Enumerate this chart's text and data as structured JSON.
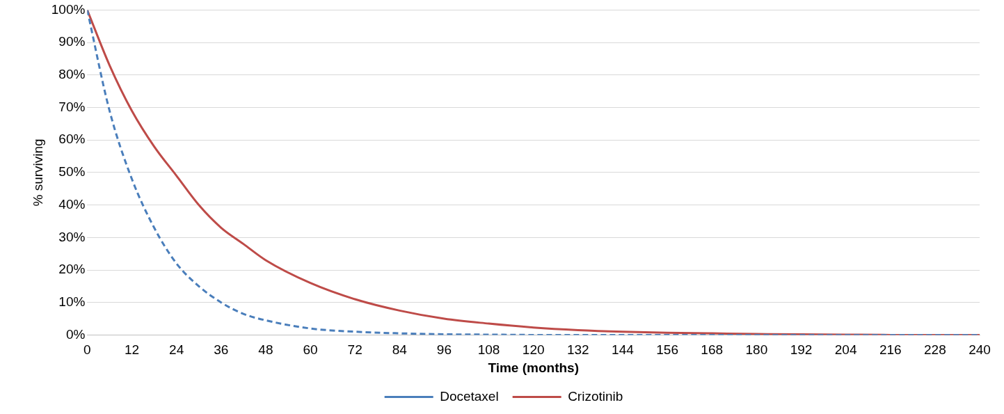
{
  "chart_data": {
    "type": "line",
    "xlabel": "Time (months)",
    "ylabel": "% surviving",
    "xlim": [
      0,
      240
    ],
    "xticks": [
      0,
      12,
      24,
      36,
      48,
      60,
      72,
      84,
      96,
      108,
      120,
      132,
      144,
      156,
      168,
      180,
      192,
      204,
      216,
      228,
      240
    ],
    "ylim": [
      0,
      100
    ],
    "yticks": [
      {
        "value": 0,
        "label": "0%"
      },
      {
        "value": 10,
        "label": "10%"
      },
      {
        "value": 20,
        "label": "20%"
      },
      {
        "value": 30,
        "label": "30%"
      },
      {
        "value": 40,
        "label": "40%"
      },
      {
        "value": 50,
        "label": "50%"
      },
      {
        "value": 60,
        "label": "60%"
      },
      {
        "value": 70,
        "label": "70%"
      },
      {
        "value": 80,
        "label": "80%"
      },
      {
        "value": 90,
        "label": "90%"
      },
      {
        "value": 100,
        "label": "100%"
      }
    ],
    "grid": "y",
    "legend": "bottom",
    "marker": "none",
    "series": [
      {
        "name": "Docetaxel",
        "color": "#4a7ebb",
        "line_style": "dashed",
        "x": [
          0,
          6,
          12,
          18,
          24,
          30,
          36,
          42,
          48,
          60,
          72,
          84,
          96,
          108,
          120,
          150,
          180,
          210,
          240
        ],
        "values": [
          100,
          69,
          48,
          33,
          22,
          15,
          10,
          6.5,
          4.5,
          2,
          1,
          0.5,
          0.2,
          0.1,
          0,
          0,
          0,
          0,
          0
        ]
      },
      {
        "name": "Crizotinib",
        "color": "#be4b48",
        "line_style": "solid",
        "x": [
          0,
          6,
          12,
          18,
          24,
          30,
          36,
          42,
          48,
          60,
          72,
          84,
          96,
          108,
          120,
          132,
          144,
          156,
          168,
          180,
          192,
          204,
          216,
          228,
          240
        ],
        "values": [
          100,
          83,
          69,
          58,
          49,
          40,
          33,
          28,
          23,
          16,
          11,
          7.5,
          5,
          3.5,
          2.3,
          1.5,
          1,
          0.7,
          0.5,
          0.3,
          0.2,
          0.1,
          0,
          0,
          0
        ]
      }
    ]
  }
}
